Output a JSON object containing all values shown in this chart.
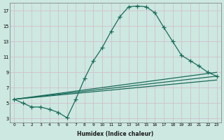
{
  "xlabel": "Humidex (Indice chaleur)",
  "bg_color": "#cce8e0",
  "grid_color": "#d4b8c8",
  "line_color": "#1a6b5a",
  "xlim": [
    -0.5,
    23.5
  ],
  "ylim": [
    2.5,
    18.0
  ],
  "yticks": [
    3,
    5,
    7,
    9,
    11,
    13,
    15,
    17
  ],
  "xticks": [
    0,
    1,
    2,
    3,
    4,
    5,
    6,
    7,
    8,
    9,
    10,
    11,
    12,
    13,
    14,
    15,
    16,
    17,
    18,
    19,
    20,
    21,
    22,
    23
  ],
  "main_x": [
    0,
    1,
    2,
    3,
    4,
    5,
    6,
    7,
    8,
    9,
    10,
    11,
    12,
    13,
    14,
    15,
    16,
    17,
    18,
    19,
    20,
    21,
    22,
    23
  ],
  "main_y": [
    5.5,
    5.0,
    4.5,
    4.5,
    4.2,
    3.8,
    3.1,
    5.5,
    8.2,
    10.5,
    12.2,
    14.3,
    16.2,
    17.5,
    17.6,
    17.5,
    16.7,
    14.8,
    13.0,
    11.2,
    10.5,
    9.8,
    9.0,
    8.5
  ],
  "line2_x": [
    0,
    23
  ],
  "line2_y": [
    5.5,
    9.0
  ],
  "line3_x": [
    0,
    23
  ],
  "line3_y": [
    5.5,
    8.5
  ],
  "line4_x": [
    0,
    23
  ],
  "line4_y": [
    5.5,
    8.0
  ],
  "lw": 0.9,
  "ms": 4
}
